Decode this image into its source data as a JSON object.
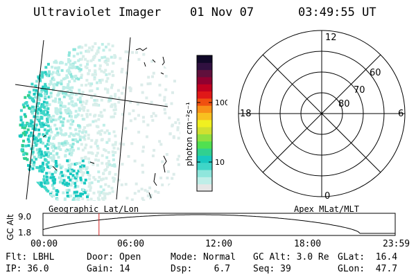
{
  "header": {
    "instrument": "Ultraviolet Imager",
    "date": "01 Nov 07",
    "time": "03:49:55 UT"
  },
  "colorbar": {
    "unit_label": "photon cm⁻²s⁻¹",
    "tick_100": "100",
    "tick_10": "10",
    "colors": [
      "#e6e6e6",
      "#bfeee8",
      "#8fe6dc",
      "#3fd6c8",
      "#18c8c0",
      "#30d090",
      "#50e050",
      "#90e040",
      "#d0e030",
      "#f0f020",
      "#f8c020",
      "#f89018",
      "#f05010",
      "#e01818",
      "#c00020",
      "#900030",
      "#60103c",
      "#301040",
      "#100828"
    ]
  },
  "polar_plot": {
    "mlt_top": "12",
    "mlt_left": "18",
    "mlt_right": "6",
    "mlt_bottom": "0",
    "lat_60": "60",
    "lat_70": "70",
    "lat_80": "80"
  },
  "timeline": {
    "left_caption": "Geographic Lat/Lon",
    "right_caption": "Apex MLat/MLT",
    "axis_label": "GC Alt",
    "y_top": "9.0",
    "y_bottom": "1.8",
    "ticks": [
      "00:00",
      "06:00",
      "12:00",
      "18:00",
      "23:59"
    ],
    "current_time_fraction": 0.159
  },
  "status": {
    "flt": "Flt: LBHL",
    "ip": "IP: 36.0",
    "door": "Door: Open",
    "gain": "Gain: 14",
    "mode": "Mode: Normal",
    "dsp": "Dsp:    6.7",
    "gc_alt": "GC Alt: 3.0 Re",
    "seq": "Seq: 39",
    "glat": "GLat:  16.4",
    "glon": "GLon:  47.7"
  }
}
